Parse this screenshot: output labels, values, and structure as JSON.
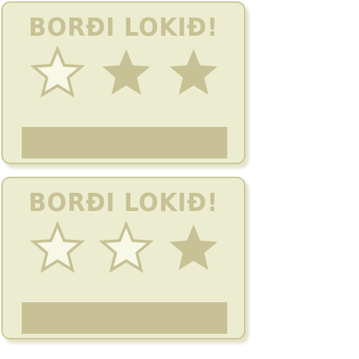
{
  "colors": {
    "card_fill": "#ecedd0",
    "card_border": "#c9c596",
    "accent": "#c7c195",
    "star_empty_fill": "#f7f8e6"
  },
  "cards": [
    {
      "title": "BORÐI LOKIÐ!",
      "stars_earned": 2,
      "stars_total": 3,
      "stars": [
        "empty-star-icon",
        "filled-star-icon",
        "filled-star-icon"
      ]
    },
    {
      "title": "BORÐI LOKIÐ!",
      "stars_earned": 1,
      "stars_total": 3,
      "stars": [
        "empty-star-icon",
        "empty-star-icon",
        "filled-star-icon"
      ]
    }
  ]
}
